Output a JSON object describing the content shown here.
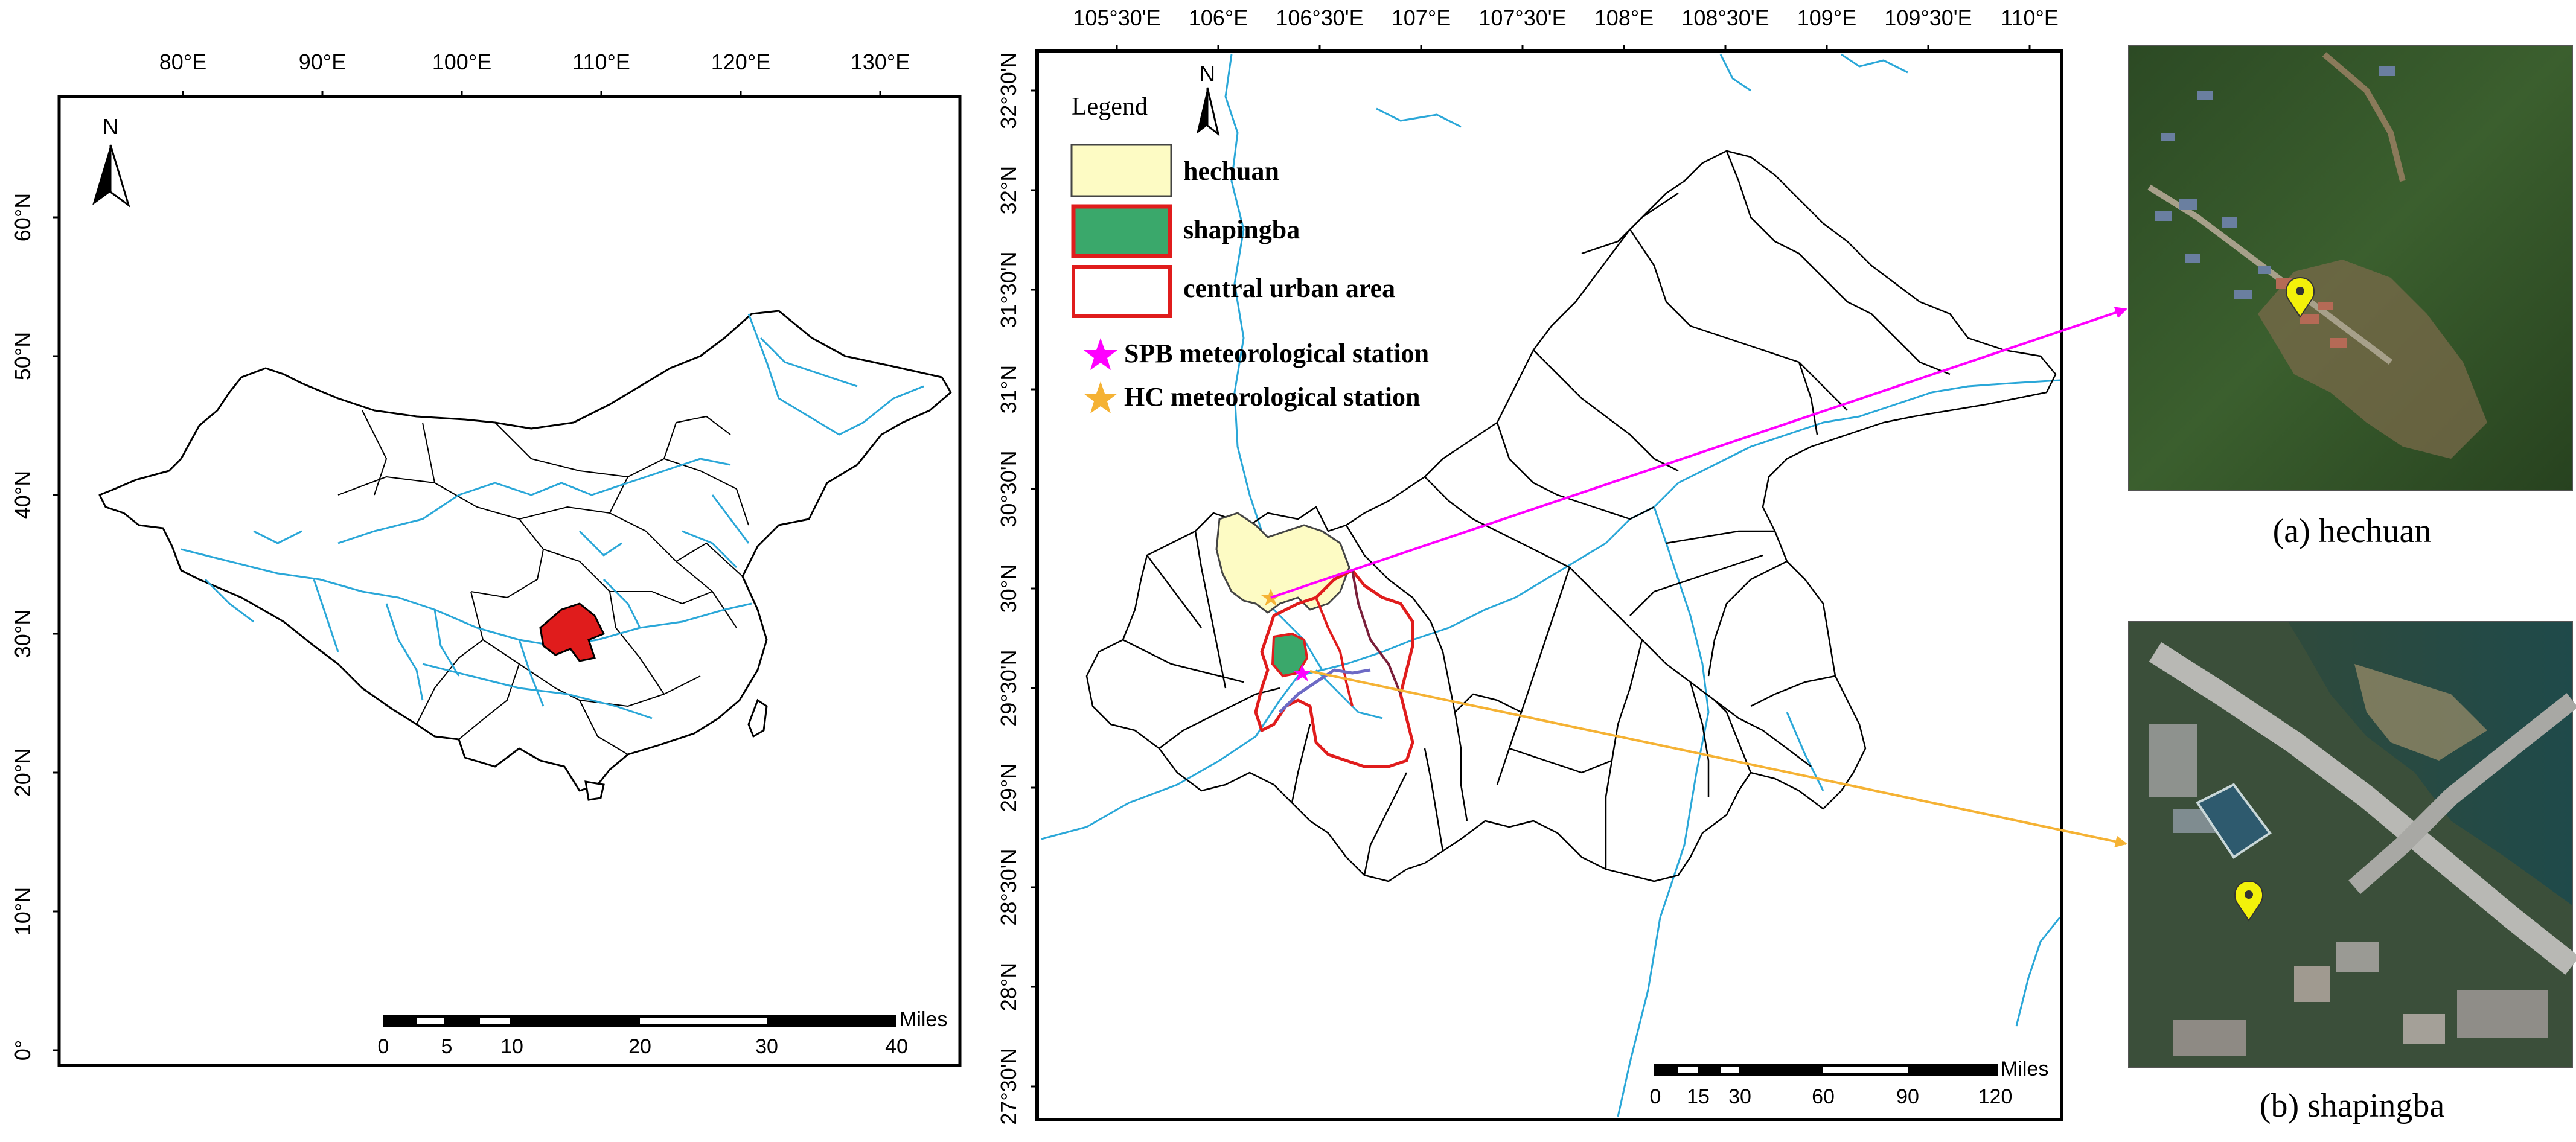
{
  "left_map": {
    "lon_ticks": [
      "80°E",
      "90°E",
      "100°E",
      "110°E",
      "120°E",
      "130°E"
    ],
    "lat_ticks": [
      "0°",
      "10°N",
      "20°N",
      "30°N",
      "40°N",
      "50°N",
      "60°N"
    ],
    "north_label": "N",
    "scale": {
      "unit": "Miles",
      "labels": [
        "0",
        "5",
        "10",
        "20",
        "30",
        "40"
      ]
    }
  },
  "center_map": {
    "lon_ticks": [
      "105°30'E",
      "106°E",
      "106°30'E",
      "107°E",
      "107°30'E",
      "108°E",
      "108°30'E",
      "109°E",
      "109°30'E",
      "110°E"
    ],
    "lat_ticks": [
      "32°30'N",
      "32°N",
      "31°30'N",
      "31°N",
      "30°30'N",
      "30°N",
      "29°30'N",
      "29°N",
      "28°30'N",
      "28°N",
      "27°30'N"
    ],
    "north_label": "N",
    "legend": {
      "title": "Legend",
      "items": [
        {
          "label": "hechuan",
          "fill": "#fdfbc4",
          "stroke": "#444444"
        },
        {
          "label": "shapingba",
          "fill": "#3aa86b",
          "stroke": "#e01c1c"
        },
        {
          "label": "central urban area",
          "fill": "#ffffff",
          "stroke": "#e01c1c"
        }
      ],
      "stations": [
        {
          "label": "SPB meteorological station",
          "color": "#ff00ff"
        },
        {
          "label": "HC meteorological station",
          "color": "#f5b234"
        }
      ]
    },
    "scale": {
      "unit": "Miles",
      "labels": [
        "0",
        "15",
        "30",
        "60",
        "90",
        "120"
      ]
    }
  },
  "photos": {
    "a_caption": "(a) hechuan",
    "b_caption": "(b) shapingba"
  },
  "colors": {
    "river": "#2aa7d8",
    "boundary": "#000000",
    "highlight": "#e01c1c",
    "spb_arrow": "#ff00ff",
    "hc_arrow": "#f5b234",
    "marker": "#f3f10a"
  }
}
